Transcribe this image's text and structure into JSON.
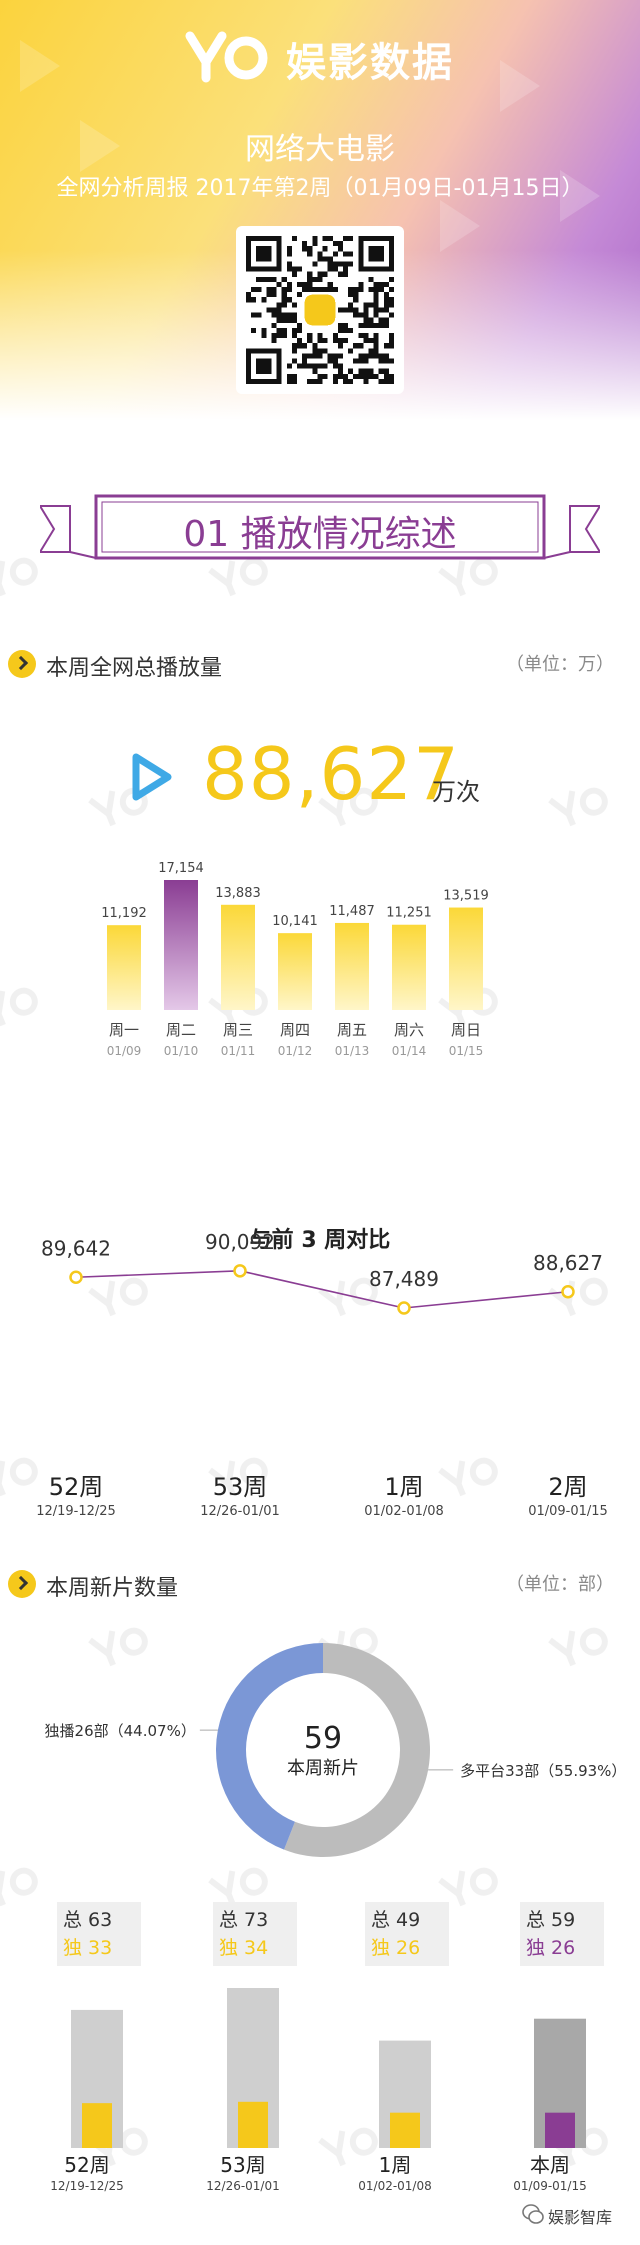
{
  "header": {
    "brand_name": "娱影数据",
    "title": "网络大电影",
    "subtitle": "全网分析周报 2017年第2周（01月09日-01月15日）"
  },
  "section_banner": "01 播放情况综述",
  "section_views": {
    "title": "本周全网总播放量",
    "unit": "（单位：万）",
    "total": "88,627",
    "total_unit": "万次"
  },
  "section_new": {
    "title": "本周新片数量",
    "unit": "（单位：部）"
  },
  "footer": {
    "brand": "娱影智库"
  },
  "colors": {
    "yellow": "#f5c81b",
    "purple": "#8a3d93",
    "blue": "#7b97d6",
    "gray": "#bcbcbc"
  },
  "chart_data": [
    {
      "type": "bar",
      "title": "",
      "categories": [
        "周一",
        "周二",
        "周三",
        "周四",
        "周五",
        "周六",
        "周日"
      ],
      "dates": [
        "01/09",
        "01/10",
        "01/11",
        "01/12",
        "01/13",
        "01/14",
        "01/15"
      ],
      "values": [
        11192,
        17154,
        13883,
        10141,
        11487,
        11251,
        13519
      ],
      "labels": [
        "11,192",
        "17,154",
        "13,883",
        "10,141",
        "11,487",
        "11,251",
        "13,519"
      ],
      "highlight_index": 1,
      "ylim": [
        0,
        17154
      ]
    },
    {
      "type": "line",
      "title": "与前 3 周对比",
      "categories": [
        "52周",
        "53周",
        "1周",
        "2周"
      ],
      "dates": [
        "12/19-12/25",
        "12/26-01/01",
        "01/02-01/08",
        "01/09-01/15"
      ],
      "values": [
        89642,
        90092,
        87489,
        88627
      ],
      "labels": [
        "89,642",
        "90,092",
        "87,489",
        "88,627"
      ]
    },
    {
      "type": "pie",
      "center_value": "59",
      "center_label": "本周新片",
      "slices": [
        {
          "name": "多平台",
          "value": 33,
          "label": "多平台33部（55.93%）",
          "color": "#bcbcbc"
        },
        {
          "name": "独播",
          "value": 26,
          "label": "独播26部（44.07%）",
          "color": "#7b97d6"
        }
      ]
    },
    {
      "type": "bar",
      "categories": [
        "52周",
        "53周",
        "1周",
        "本周"
      ],
      "dates": [
        "12/19-12/25",
        "12/26-01/01",
        "01/02-01/08",
        "01/09-01/15"
      ],
      "series": [
        {
          "name": "总",
          "values": [
            63,
            73,
            49,
            59
          ]
        },
        {
          "name": "独",
          "values": [
            33,
            34,
            26,
            26
          ]
        }
      ],
      "total_prefix": "总",
      "exclusive_prefix": "独",
      "ylim": [
        0,
        73
      ]
    }
  ]
}
